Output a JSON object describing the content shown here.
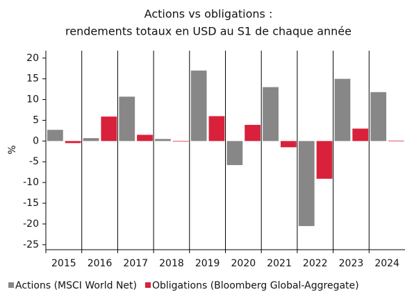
{
  "chart_data": {
    "type": "bar",
    "title": [
      "Actions vs obligations :",
      "rendements totaux en USD au S1 de chaque année"
    ],
    "y_label": "%",
    "categories": [
      "2015",
      "2016",
      "2017",
      "2018",
      "2019",
      "2020",
      "2021",
      "2022",
      "2023",
      "2024"
    ],
    "series": [
      {
        "name": "Actions (MSCI World Net)",
        "color": "#878787",
        "values": [
          2.7,
          0.7,
          10.7,
          0.5,
          17,
          -5.8,
          13,
          -20.5,
          15,
          11.8
        ]
      },
      {
        "name": "Obligations (Bloomberg Global-Aggregate)",
        "color": "#d9213b",
        "values": [
          -0.5,
          5.9,
          1.5,
          -0.1,
          6,
          3.9,
          -1.5,
          -9.1,
          3,
          0.1
        ]
      }
    ],
    "ylim": [
      -26.2,
      21.8
    ],
    "yticks": [
      20,
      15,
      10,
      5,
      0,
      -5,
      -10,
      -15,
      -20,
      -25
    ],
    "category_separators": true
  }
}
